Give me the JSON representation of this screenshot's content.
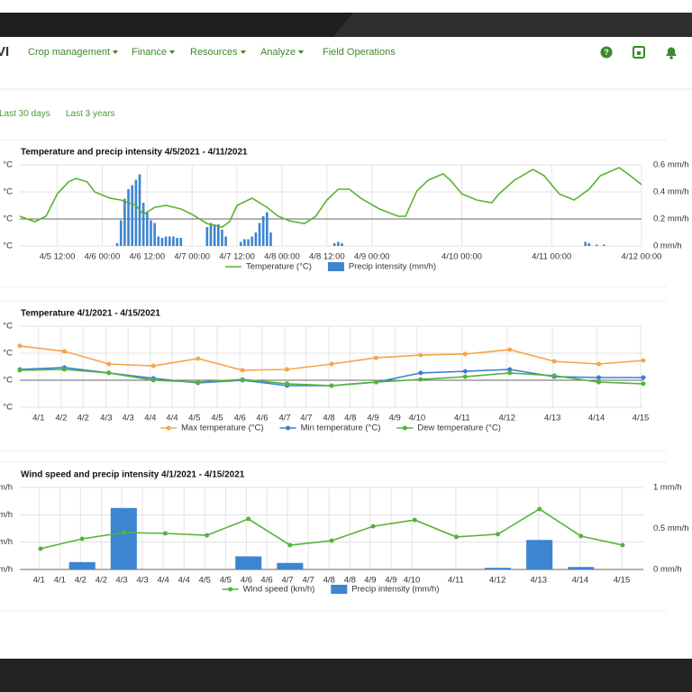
{
  "nav": {
    "logo": "VI",
    "items": [
      "Crop management",
      "Finance",
      "Resources",
      "Analyze",
      "Field Operations"
    ]
  },
  "filters": [
    "Last 30 days",
    "Last 3 years"
  ],
  "chart_data": [
    {
      "type": "combo",
      "title": "Temperature and precip intensity 4/5/2021 - 4/11/2021",
      "xlim": [
        2,
        168
      ],
      "xticks": [
        {
          "value": 12,
          "label": "4/5 12:00"
        },
        {
          "value": 24,
          "label": "4/6 00:00"
        },
        {
          "value": 36,
          "label": "4/6 12:00"
        },
        {
          "value": 48,
          "label": "4/7 00:00"
        },
        {
          "value": 60,
          "label": "4/7 12:00"
        },
        {
          "value": 72,
          "label": "4/8 00:00"
        },
        {
          "value": 84,
          "label": "4/8 12:00"
        },
        {
          "value": 96,
          "label": "4/9 00:00"
        },
        {
          "value": 120,
          "label": "4/10 00:00"
        },
        {
          "value": 144,
          "label": "4/11 00:00"
        },
        {
          "value": 168,
          "label": "4/12 00:00"
        }
      ],
      "ylim": [
        -10,
        20
      ],
      "yticks": [
        {
          "value": -10,
          "label": "°C"
        },
        {
          "value": 0,
          "label": "°C"
        },
        {
          "value": 10,
          "label": "°C"
        },
        {
          "value": 20,
          "label": "°C"
        }
      ],
      "y2lim": [
        0,
        0.6
      ],
      "y2ticks": [
        {
          "value": 0,
          "label": "0 mm/h"
        },
        {
          "value": 0.2,
          "label": "0.2 mm/h"
        },
        {
          "value": 0.4,
          "label": "0.4 mm/h"
        },
        {
          "value": 0.6,
          "label": "0.6 mm/h"
        }
      ],
      "grid": true,
      "series": [
        {
          "name": "Temperature (°C)",
          "type": "line",
          "color": "#5ab32e",
          "markers": false,
          "x": [
            2,
            6,
            9,
            12,
            15,
            17,
            20,
            22,
            26,
            29,
            33,
            35,
            38,
            41,
            45,
            48,
            52,
            56,
            58,
            60,
            64,
            68,
            71,
            74,
            78,
            81,
            84,
            87,
            90,
            93,
            98,
            103,
            105,
            108,
            111,
            115,
            117,
            120,
            124,
            128,
            130,
            134,
            139,
            142,
            146,
            150,
            154,
            157,
            162,
            165,
            168
          ],
          "values": [
            1,
            -1,
            1,
            9.3,
            13.7,
            15,
            13.7,
            10,
            7.7,
            7,
            5,
            1.7,
            4.3,
            5,
            3.7,
            1.7,
            -1.7,
            -3,
            -1,
            5,
            7.7,
            4.3,
            1,
            -0.7,
            -1.7,
            1,
            7,
            11,
            11,
            7.7,
            3.7,
            1,
            1,
            10.3,
            14.3,
            16.7,
            14.3,
            9.3,
            7,
            6,
            9.3,
            14.3,
            18.3,
            16,
            9.3,
            7,
            11,
            16,
            19,
            16,
            12.7
          ]
        },
        {
          "name": "Precip intensity (mm/h)",
          "type": "bar",
          "axis": "y2",
          "color": "#3d85d0",
          "x": [
            28,
            29,
            30,
            31,
            32,
            33,
            34,
            35,
            36,
            37,
            38,
            39,
            40,
            41,
            42,
            43,
            44,
            45,
            52,
            53,
            54,
            55,
            56,
            57,
            61,
            62,
            63,
            64,
            65,
            66,
            67,
            68,
            69,
            86,
            87,
            88,
            153,
            154,
            156,
            158
          ],
          "values": [
            0.02,
            0.19,
            0.35,
            0.42,
            0.45,
            0.49,
            0.53,
            0.32,
            0.25,
            0.19,
            0.17,
            0.07,
            0.06,
            0.07,
            0.07,
            0.07,
            0.06,
            0.06,
            0.14,
            0.17,
            0.16,
            0.16,
            0.12,
            0.07,
            0.03,
            0.05,
            0.05,
            0.07,
            0.1,
            0.17,
            0.22,
            0.25,
            0.1,
            0.02,
            0.03,
            0.02,
            0.03,
            0.02,
            0.01,
            0.01
          ]
        }
      ]
    },
    {
      "type": "line",
      "title": "Temperature 4/1/2021 - 4/15/2021",
      "x": [
        1,
        2,
        3,
        4,
        5,
        6,
        7,
        8,
        9,
        10,
        11,
        12,
        13,
        14,
        15
      ],
      "xlim": [
        1,
        15
      ],
      "xticks": [
        {
          "value": 1.42,
          "label": "4/1"
        },
        {
          "value": 1.93,
          "label": "4/2"
        },
        {
          "value": 2.42,
          "label": "4/2"
        },
        {
          "value": 2.94,
          "label": "4/3"
        },
        {
          "value": 3.43,
          "label": "4/3"
        },
        {
          "value": 3.93,
          "label": "4/4"
        },
        {
          "value": 4.42,
          "label": "4/4"
        },
        {
          "value": 4.92,
          "label": "4/5"
        },
        {
          "value": 5.43,
          "label": "4/5"
        },
        {
          "value": 5.94,
          "label": "4/6"
        },
        {
          "value": 6.44,
          "label": "4/6"
        },
        {
          "value": 6.95,
          "label": "4/7"
        },
        {
          "value": 7.43,
          "label": "4/7"
        },
        {
          "value": 7.94,
          "label": "4/8"
        },
        {
          "value": 8.42,
          "label": "4/8"
        },
        {
          "value": 8.93,
          "label": "4/9"
        },
        {
          "value": 9.42,
          "label": "4/9"
        },
        {
          "value": 9.92,
          "label": "4/10"
        },
        {
          "value": 10.93,
          "label": "4/11"
        },
        {
          "value": 11.94,
          "label": "4/12"
        },
        {
          "value": 12.96,
          "label": "4/13"
        },
        {
          "value": 13.95,
          "label": "4/14"
        },
        {
          "value": 14.94,
          "label": "4/15"
        }
      ],
      "ylim": [
        -10,
        20
      ],
      "yticks": [
        {
          "value": -10,
          "label": "°C"
        },
        {
          "value": 0,
          "label": "°C"
        },
        {
          "value": 10,
          "label": "°C"
        },
        {
          "value": 20,
          "label": "°C"
        }
      ],
      "grid": true,
      "series": [
        {
          "name": "Max temperature (°C)",
          "type": "line",
          "color": "#f5a54a",
          "markers": true,
          "values": [
            12.7,
            10.7,
            6,
            5.3,
            8,
            3.7,
            4,
            6,
            8.3,
            9.3,
            9.7,
            11.3,
            7,
            6,
            7.3
          ]
        },
        {
          "name": "Min temperature (°C)",
          "type": "line",
          "color": "#3a7fd5",
          "markers": true,
          "values": [
            4,
            4.7,
            2.7,
            0.7,
            -1,
            0,
            -2,
            -2,
            -0.7,
            2.7,
            3.3,
            4,
            1.3,
            1,
            1
          ]
        },
        {
          "name": "Dew temperature (°C)",
          "type": "line",
          "color": "#55b33a",
          "markers": true,
          "values": [
            3.7,
            4,
            2.7,
            0,
            -0.7,
            0.3,
            -1.3,
            -2,
            -0.7,
            0.3,
            1.3,
            2.7,
            1.7,
            -0.7,
            -1.3
          ]
        }
      ]
    },
    {
      "type": "combo",
      "title": "Wind speed and precip intensity 4/1/2021 - 4/15/2021",
      "x": [
        1,
        2,
        3,
        4,
        5,
        6,
        7,
        8,
        9,
        10,
        11,
        12,
        13,
        14,
        15
      ],
      "xlim": [
        0.5,
        15.5
      ],
      "xticks": [
        {
          "value": 0.96,
          "label": "4/1"
        },
        {
          "value": 1.46,
          "label": "4/1"
        },
        {
          "value": 1.96,
          "label": "4/2"
        },
        {
          "value": 2.46,
          "label": "4/2"
        },
        {
          "value": 2.95,
          "label": "4/3"
        },
        {
          "value": 3.45,
          "label": "4/3"
        },
        {
          "value": 3.95,
          "label": "4/4"
        },
        {
          "value": 4.45,
          "label": "4/4"
        },
        {
          "value": 4.95,
          "label": "4/5"
        },
        {
          "value": 5.45,
          "label": "4/5"
        },
        {
          "value": 5.95,
          "label": "4/6"
        },
        {
          "value": 6.44,
          "label": "4/6"
        },
        {
          "value": 6.94,
          "label": "4/7"
        },
        {
          "value": 7.44,
          "label": "4/7"
        },
        {
          "value": 7.94,
          "label": "4/8"
        },
        {
          "value": 8.44,
          "label": "4/8"
        },
        {
          "value": 8.93,
          "label": "4/9"
        },
        {
          "value": 9.43,
          "label": "4/9"
        },
        {
          "value": 9.93,
          "label": "4/10"
        },
        {
          "value": 10.99,
          "label": "4/11"
        },
        {
          "value": 11.99,
          "label": "4/12"
        },
        {
          "value": 12.98,
          "label": "4/13"
        },
        {
          "value": 13.98,
          "label": "4/14"
        },
        {
          "value": 14.98,
          "label": "4/15"
        }
      ],
      "ylim": [
        0,
        30
      ],
      "yticks": [
        {
          "value": 0,
          "label": "km/h"
        },
        {
          "value": 10,
          "label": "km/h"
        },
        {
          "value": 20,
          "label": "km/h"
        },
        {
          "value": 30,
          "label": "km/h"
        }
      ],
      "y2lim": [
        0,
        1
      ],
      "y2ticks": [
        {
          "value": 0,
          "label": "0 mm/h"
        },
        {
          "value": 0.5,
          "label": "0.5 mm/h"
        },
        {
          "value": 1,
          "label": "1 mm/h"
        }
      ],
      "grid": true,
      "series": [
        {
          "name": "Wind speed (km/h)",
          "type": "line",
          "color": "#55b33a",
          "markers": true,
          "values": [
            7.6,
            11.2,
            13.5,
            13.2,
            12.5,
            18.5,
            8.9,
            10.5,
            15.8,
            18.1,
            11.9,
            12.9,
            22.1,
            12.2,
            8.9
          ]
        },
        {
          "name": "Precip intensity (mm/h)",
          "type": "bar",
          "axis": "y2",
          "color": "#3d85d0",
          "values": [
            0,
            0.09,
            0.75,
            0,
            0,
            0.16,
            0.08,
            0,
            0,
            0,
            0,
            0.02,
            0.36,
            0.03,
            0
          ]
        }
      ]
    }
  ]
}
